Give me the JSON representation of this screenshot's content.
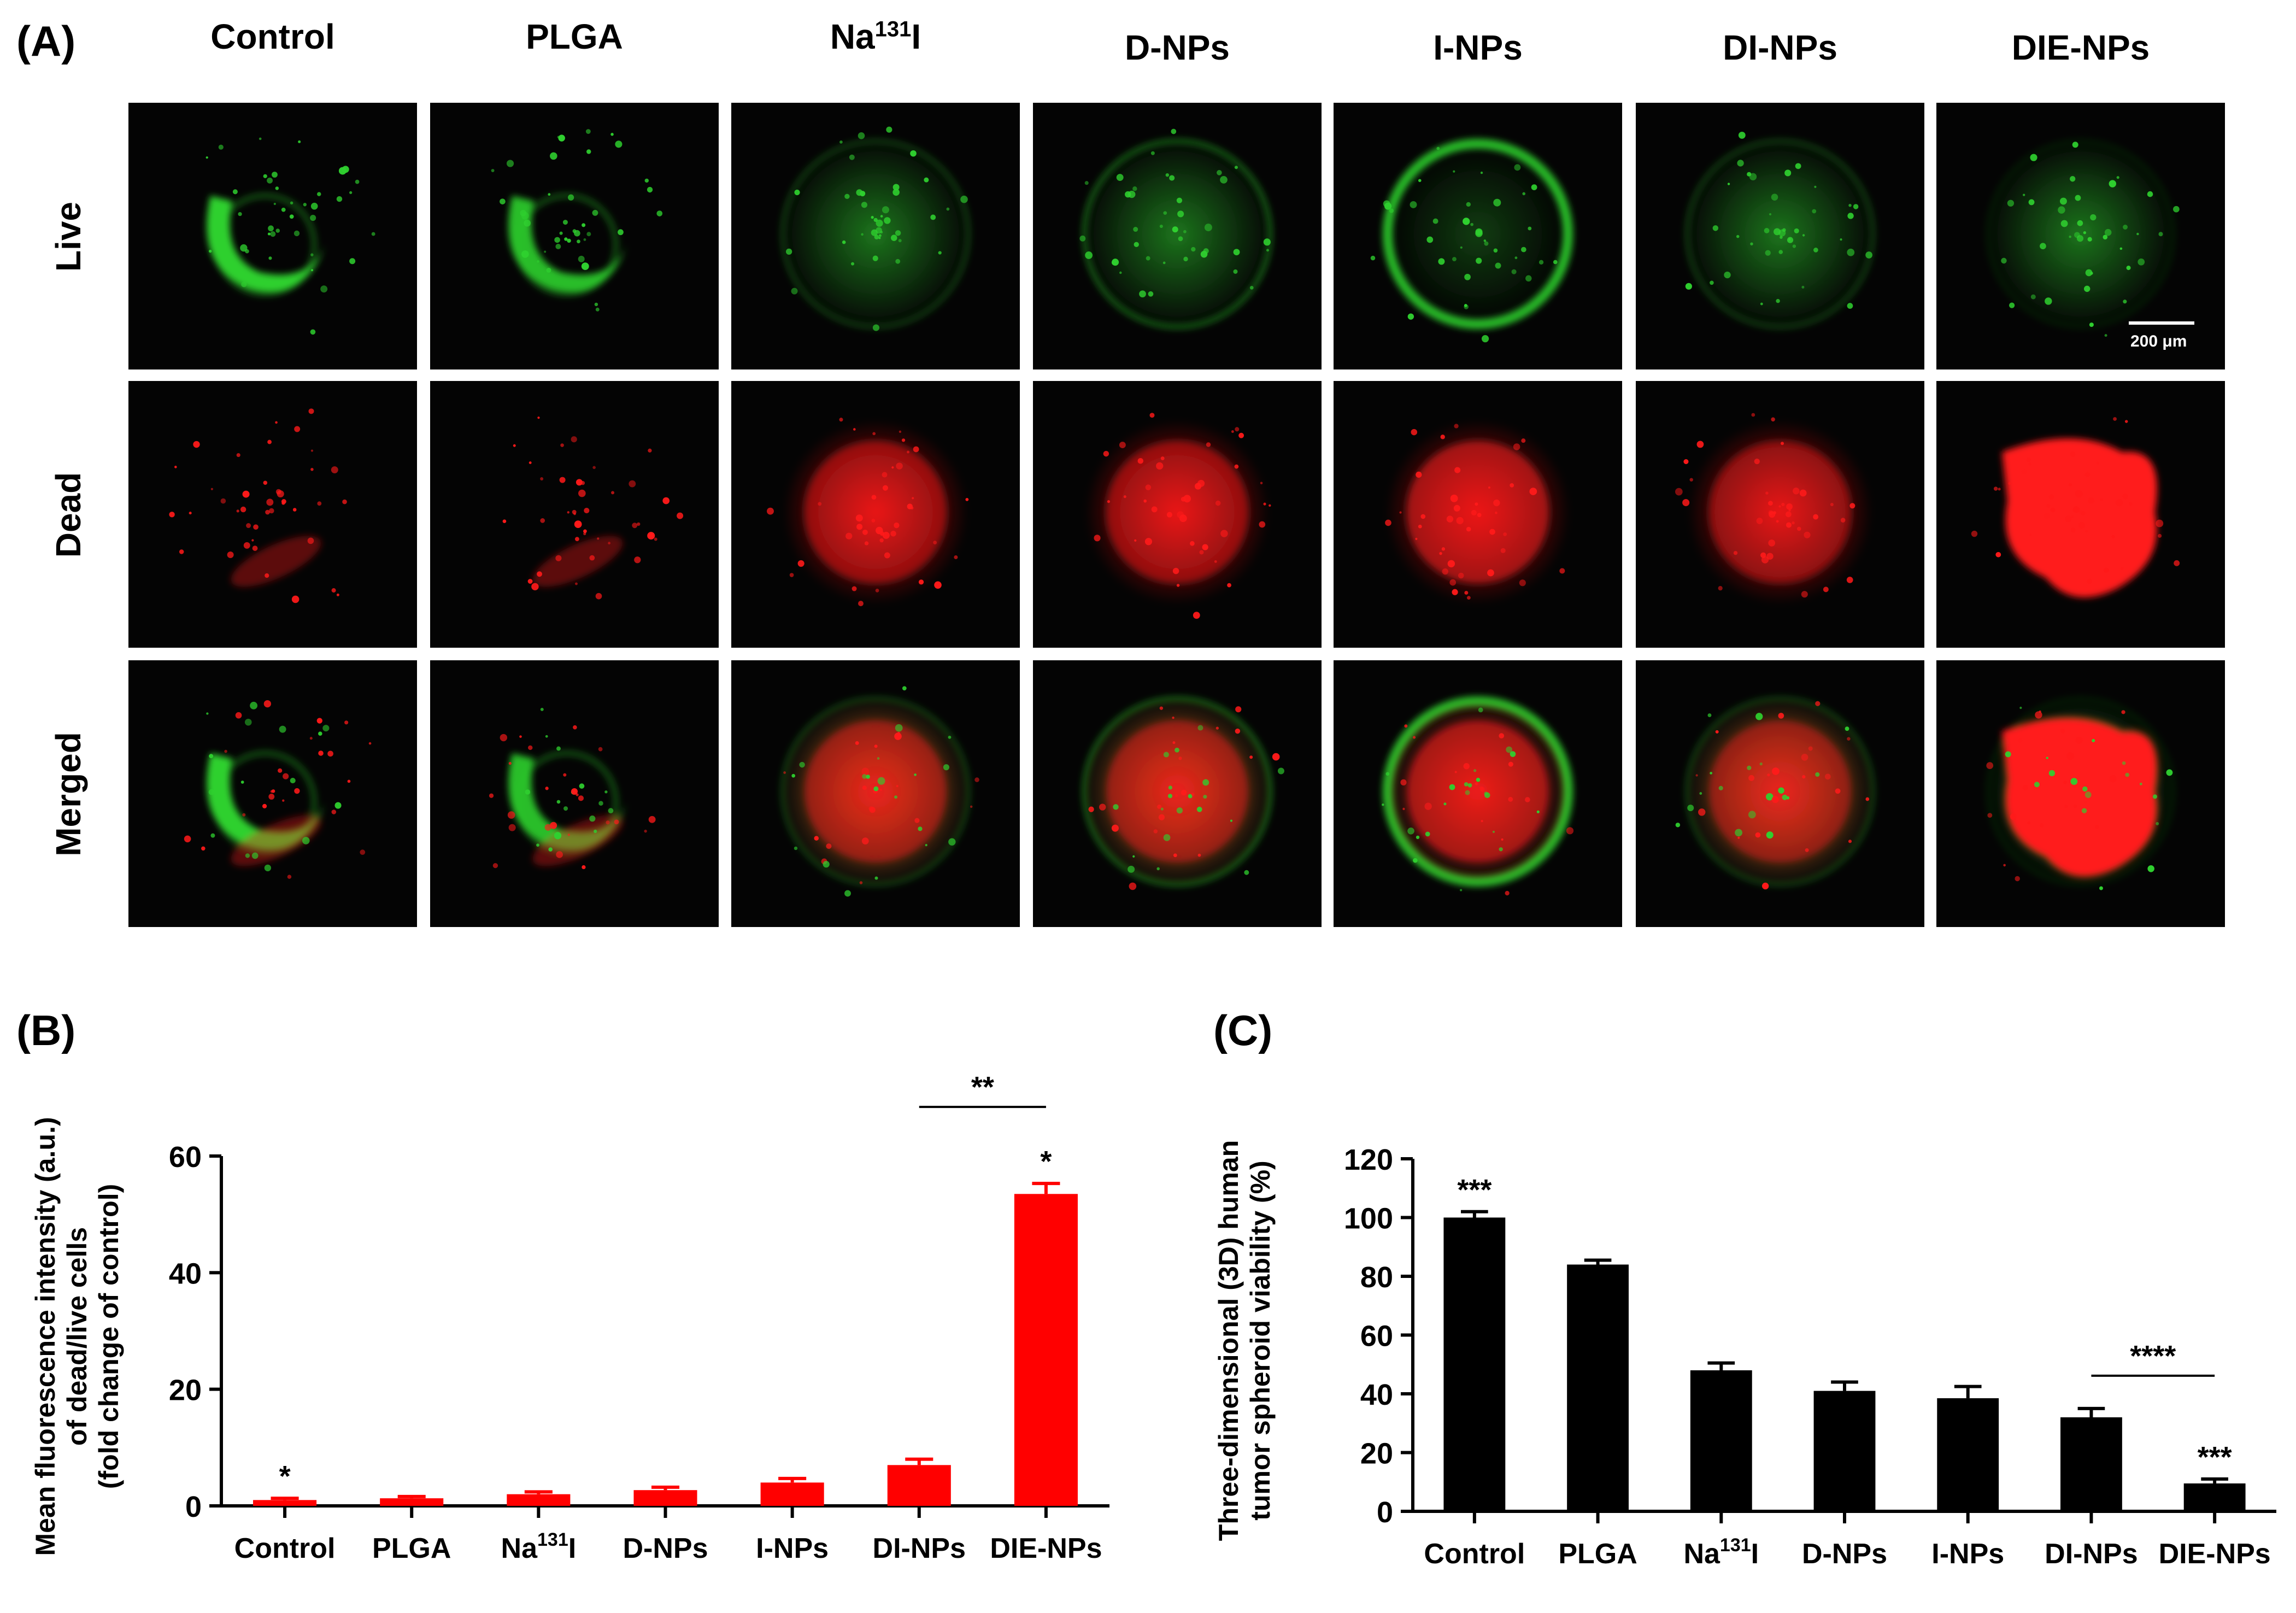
{
  "panel_labels": {
    "a": "(A)",
    "b": "(B)",
    "c": "(C)"
  },
  "columns": [
    {
      "label": "Control",
      "sup": ""
    },
    {
      "label": "PLGA",
      "sup": ""
    },
    {
      "label": "Na",
      "sup": "131",
      "suffix": "I"
    },
    {
      "label": "D-NPs",
      "sup": ""
    },
    {
      "label": "I-NPs",
      "sup": ""
    },
    {
      "label": "DI-NPs",
      "sup": ""
    },
    {
      "label": "DIE-NPs",
      "sup": ""
    }
  ],
  "rows": [
    {
      "label": "Live"
    },
    {
      "label": "Dead"
    },
    {
      "label": "Merged"
    }
  ],
  "scale_bar": {
    "label": "200 μm"
  },
  "colors": {
    "live": "#2fd02f",
    "dead": "#ff1a1a",
    "bar_b": "#ff0000",
    "bar_c": "#000000"
  },
  "chart_data": [
    {
      "type": "bar",
      "ylabel": [
        "Mean fluorescence intensity (a.u.)",
        "of dead/live cells",
        "(fold change of control)"
      ],
      "categories": [
        "Control",
        "PLGA",
        "Na131I",
        "D-NPs",
        "I-NPs",
        "DI-NPs",
        "DIE-NPs"
      ],
      "category_display": [
        {
          "text": "Control",
          "sup": ""
        },
        {
          "text": "PLGA",
          "sup": ""
        },
        {
          "text": "Na",
          "sup": "131",
          "suffix": "I"
        },
        {
          "text": "D-NPs",
          "sup": ""
        },
        {
          "text": "I-NPs",
          "sup": ""
        },
        {
          "text": "DI-NPs",
          "sup": ""
        },
        {
          "text": "DIE-NPs",
          "sup": ""
        }
      ],
      "values": [
        1,
        1.3,
        2,
        2.7,
        4,
        7,
        53.5
      ],
      "errors": [
        0.3,
        0.3,
        0.4,
        0.5,
        0.7,
        1.0,
        1.8
      ],
      "ylim": [
        0,
        60
      ],
      "yticks": [
        0,
        20,
        40,
        60
      ],
      "bar_stars": [
        "*",
        "",
        "",
        "",
        "",
        "",
        "*"
      ],
      "comparison": {
        "from": 5,
        "to": 6,
        "label": "**"
      }
    },
    {
      "type": "bar",
      "ylabel": [
        "Three-dimensional (3D) human",
        "tumor spheroid viability (%)"
      ],
      "categories": [
        "Control",
        "PLGA",
        "Na131I",
        "D-NPs",
        "I-NPs",
        "DI-NPs",
        "DIE-NPs"
      ],
      "category_display": [
        {
          "text": "Control",
          "sup": ""
        },
        {
          "text": "PLGA",
          "sup": ""
        },
        {
          "text": "Na",
          "sup": "131",
          "suffix": "I"
        },
        {
          "text": "D-NPs",
          "sup": ""
        },
        {
          "text": "I-NPs",
          "sup": ""
        },
        {
          "text": "DI-NPs",
          "sup": ""
        },
        {
          "text": "DIE-NPs",
          "sup": ""
        }
      ],
      "values": [
        100,
        84,
        48,
        41,
        38.5,
        32,
        9.5
      ],
      "errors": [
        2,
        1.5,
        2.5,
        3,
        4,
        3,
        1.5
      ],
      "ylim": [
        0,
        120
      ],
      "yticks": [
        0,
        20,
        40,
        60,
        80,
        100,
        120
      ],
      "bar_stars": [
        "***",
        "",
        "",
        "",
        "",
        "",
        "***"
      ],
      "comparison": {
        "from": 5,
        "to": 6,
        "label": "****"
      }
    }
  ]
}
